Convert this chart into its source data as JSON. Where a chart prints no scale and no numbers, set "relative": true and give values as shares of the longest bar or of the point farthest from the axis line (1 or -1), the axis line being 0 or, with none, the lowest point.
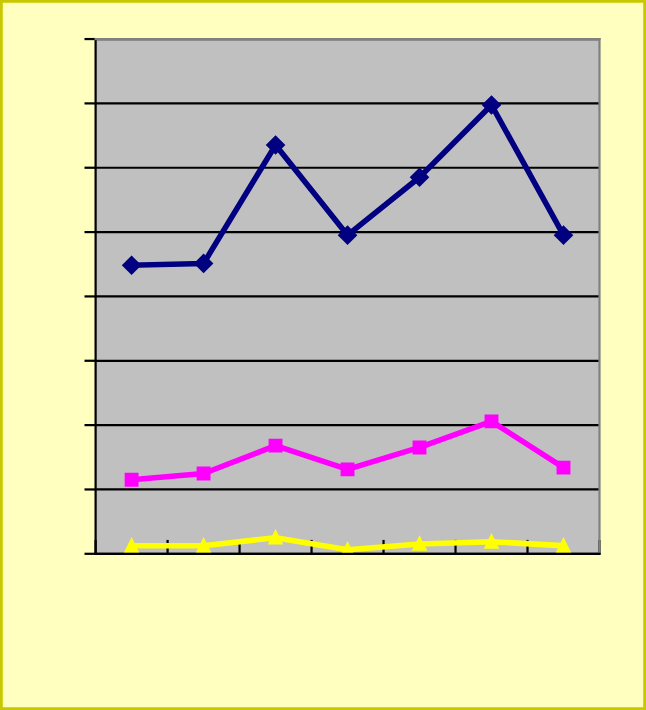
{
  "chart_data": {
    "type": "line",
    "relative": true,
    "categories": [
      null,
      null,
      null,
      null,
      null,
      null,
      null
    ],
    "series": [
      {
        "color": "#000080",
        "marker": "diamond",
        "values": [
          0.643,
          0.647,
          0.911,
          0.71,
          0.839,
          1.0,
          0.71
        ]
      },
      {
        "color": "#ff00ff",
        "marker": "square",
        "values": [
          0.165,
          0.179,
          0.241,
          0.188,
          0.237,
          0.295,
          0.192
        ]
      },
      {
        "color": "#ffff00",
        "marker": "triangle",
        "values": [
          0.018,
          0.018,
          0.036,
          0.009,
          0.022,
          0.027,
          0.018
        ]
      }
    ],
    "grid": "y",
    "legend": false,
    "tick_labels": false,
    "line_style": "solid"
  }
}
